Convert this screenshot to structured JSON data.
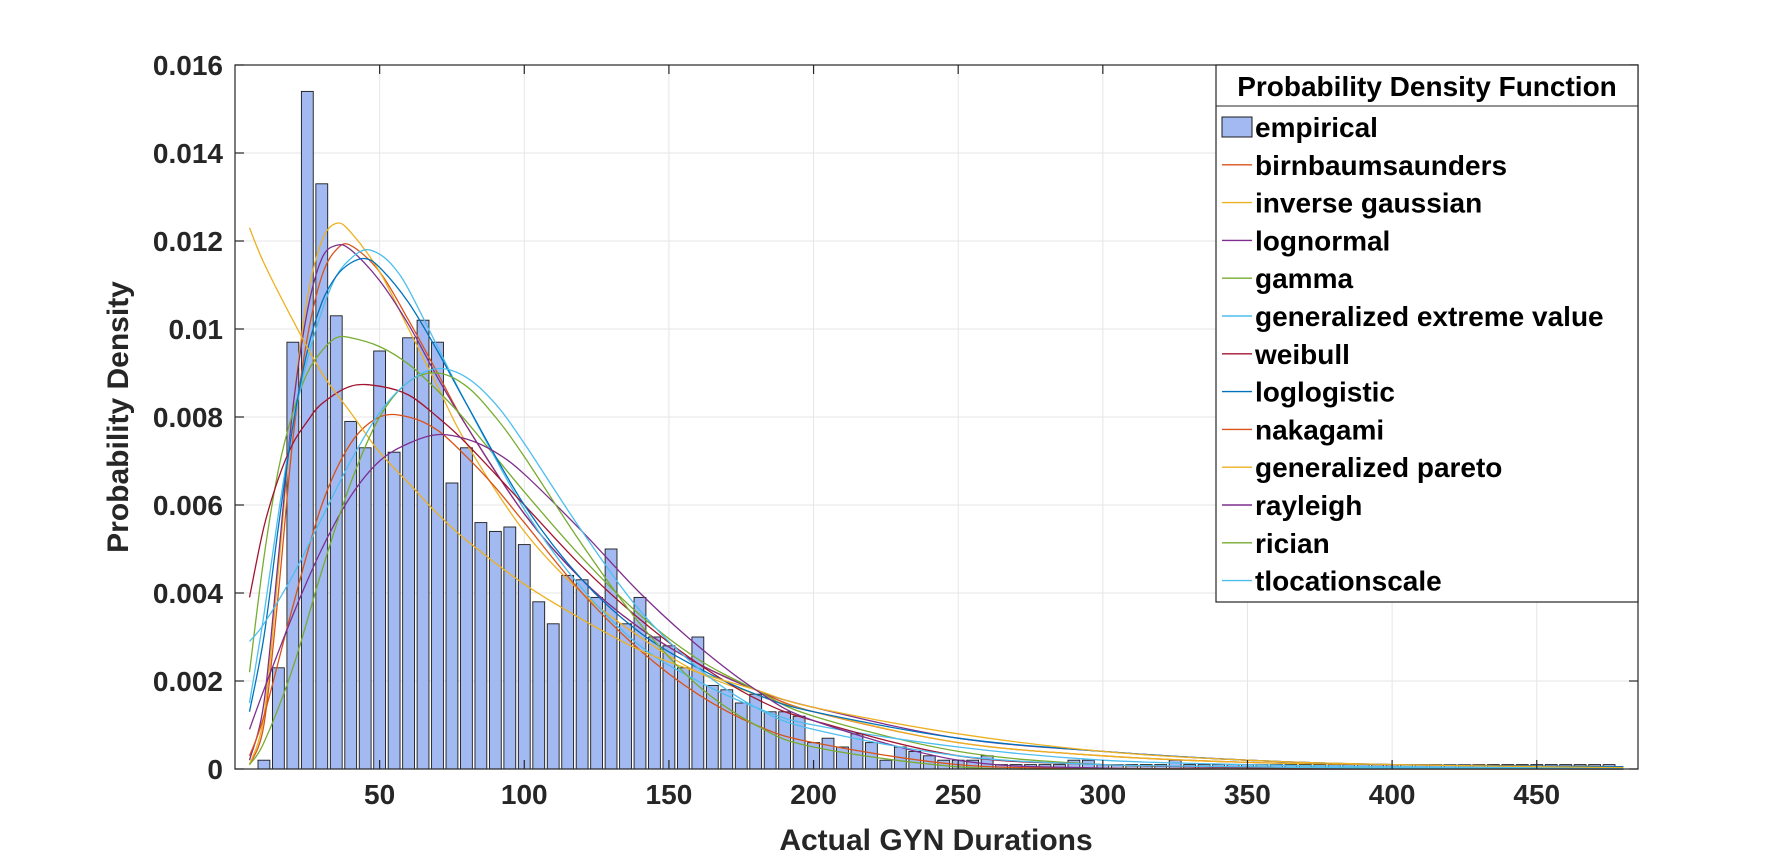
{
  "chart_data": {
    "type": "bar",
    "xlabel": "Actual GYN Durations",
    "ylabel": "Probability Density",
    "xlim": [
      0,
      485
    ],
    "ylim": [
      0,
      0.016
    ],
    "x_ticks": [
      50,
      100,
      150,
      200,
      250,
      300,
      350,
      400,
      450
    ],
    "x_tick_labels": [
      "50",
      "100",
      "150",
      "200",
      "250",
      "300",
      "350",
      "400",
      "450"
    ],
    "y_ticks": [
      0,
      0.002,
      0.004,
      0.006,
      0.008,
      0.01,
      0.012,
      0.014,
      0.016
    ],
    "y_tick_labels": [
      "0",
      "0.002",
      "0.004",
      "0.006",
      "0.008",
      "0.01",
      "0.012",
      "0.014",
      "0.016"
    ],
    "grid": true,
    "legend_title": "Probability Density Function",
    "legend_position": "top-right",
    "histogram": {
      "name": "empirical",
      "color": "#a3b9f2",
      "edge_color": "#1a1a1a",
      "bin_width": 5,
      "bin_centers": [
        10,
        15,
        20,
        25,
        30,
        35,
        40,
        45,
        50,
        55,
        60,
        65,
        70,
        75,
        80,
        85,
        90,
        95,
        100,
        105,
        110,
        115,
        120,
        125,
        130,
        135,
        140,
        145,
        150,
        155,
        160,
        165,
        170,
        175,
        180,
        185,
        190,
        195,
        200,
        205,
        210,
        215,
        220,
        225,
        230,
        235,
        240,
        245,
        250,
        255,
        260,
        265,
        270,
        275,
        280,
        285,
        290,
        295,
        300,
        305,
        310,
        315,
        320,
        325,
        330,
        335,
        340,
        345,
        350,
        355,
        360,
        365,
        370,
        375,
        380,
        385,
        390,
        395,
        400,
        405,
        410,
        415,
        420,
        425,
        430,
        435,
        440,
        445,
        450,
        455,
        460,
        465,
        470,
        475
      ],
      "values": [
        0.0002,
        0.0023,
        0.0097,
        0.0154,
        0.0133,
        0.0103,
        0.0079,
        0.0073,
        0.0095,
        0.0072,
        0.0098,
        0.0102,
        0.0097,
        0.0065,
        0.0073,
        0.0056,
        0.0054,
        0.0055,
        0.0051,
        0.0038,
        0.0033,
        0.0044,
        0.0043,
        0.0039,
        0.005,
        0.0033,
        0.0039,
        0.003,
        0.0028,
        0.0023,
        0.003,
        0.0019,
        0.0018,
        0.0015,
        0.0017,
        0.0013,
        0.0013,
        0.0012,
        0.0006,
        0.0007,
        0.0005,
        0.0008,
        0.0006,
        0.0002,
        0.0005,
        0.0004,
        0.0003,
        0.0002,
        0.0002,
        0.0002,
        0.0003,
        0.0001,
        0.0001,
        0.0001,
        0.0001,
        0.0001,
        0.0002,
        0.0002,
        0.0001,
        0.0001,
        0.0001,
        0.0001,
        0.0001,
        0.0002,
        0.0001,
        0.0001,
        0.0001,
        0.0001,
        0.0001,
        0.0001,
        0.0001,
        0.0001,
        0.0001,
        0.0001,
        0.0001,
        0.0001,
        0.0001,
        0.0001,
        0.0001,
        0.0001,
        0.0001,
        0.0001,
        0.0001,
        0.0001,
        0.0001,
        0.0001,
        0.0001,
        0.0001,
        0.0001,
        0.0001,
        0.0001,
        0.0001,
        0.0001,
        0.0001
      ]
    },
    "series": [
      {
        "name": "birnbaumsaunders",
        "color": "#d95319",
        "x": [
          5,
          10,
          15,
          20,
          25,
          30,
          35,
          40,
          50,
          60,
          70,
          80,
          100,
          120,
          140,
          160,
          180,
          200,
          250,
          300,
          350,
          400,
          480
        ],
        "y": [
          0.0001,
          0.001,
          0.004,
          0.0075,
          0.0098,
          0.0112,
          0.0118,
          0.0119,
          0.0113,
          0.0102,
          0.009,
          0.0078,
          0.0058,
          0.0043,
          0.0032,
          0.0024,
          0.0018,
          0.0013,
          0.0006,
          0.0003,
          0.00015,
          0.0001,
          5e-05
        ]
      },
      {
        "name": "inverse gaussian",
        "color": "#edb120",
        "x": [
          5,
          10,
          15,
          20,
          25,
          30,
          35,
          40,
          50,
          60,
          70,
          80,
          100,
          120,
          140,
          160,
          180,
          200,
          250,
          300,
          350,
          400,
          480
        ],
        "y": [
          0.0001,
          0.0012,
          0.0045,
          0.0082,
          0.0107,
          0.012,
          0.0124,
          0.0122,
          0.0113,
          0.01,
          0.0087,
          0.0074,
          0.0054,
          0.004,
          0.003,
          0.0022,
          0.0017,
          0.0013,
          0.0006,
          0.0003,
          0.00015,
          0.0001,
          5e-05
        ]
      },
      {
        "name": "lognormal",
        "color": "#7e2f8e",
        "x": [
          5,
          10,
          15,
          20,
          25,
          30,
          35,
          40,
          50,
          60,
          70,
          80,
          100,
          120,
          140,
          160,
          180,
          200,
          250,
          300,
          350,
          400,
          480
        ],
        "y": [
          0.0002,
          0.0015,
          0.0048,
          0.0082,
          0.0104,
          0.0116,
          0.0119,
          0.0118,
          0.0111,
          0.0101,
          0.0089,
          0.0078,
          0.0058,
          0.0043,
          0.0032,
          0.0024,
          0.0018,
          0.0014,
          0.0007,
          0.0004,
          0.0002,
          0.0001,
          5e-05
        ]
      },
      {
        "name": "gamma",
        "color": "#77ac30",
        "x": [
          5,
          10,
          15,
          20,
          25,
          30,
          35,
          40,
          50,
          60,
          70,
          80,
          100,
          120,
          140,
          160,
          180,
          200,
          250,
          300,
          350,
          400,
          480
        ],
        "y": [
          0.0022,
          0.0048,
          0.0068,
          0.0081,
          0.009,
          0.0095,
          0.0098,
          0.0098,
          0.0096,
          0.0092,
          0.0086,
          0.0079,
          0.0063,
          0.0048,
          0.0035,
          0.0025,
          0.0018,
          0.0012,
          0.0004,
          0.0001,
          5e-05,
          2e-05,
          0
        ]
      },
      {
        "name": "generalized extreme value",
        "color": "#4dbeee",
        "x": [
          5,
          10,
          15,
          20,
          25,
          30,
          35,
          40,
          45,
          50,
          55,
          60,
          70,
          80,
          100,
          120,
          140,
          160,
          180,
          200,
          250,
          300,
          350,
          400,
          480
        ],
        "y": [
          0.0015,
          0.0035,
          0.0058,
          0.0078,
          0.0093,
          0.0104,
          0.0112,
          0.0116,
          0.0118,
          0.0117,
          0.0114,
          0.0109,
          0.0096,
          0.0083,
          0.0059,
          0.0041,
          0.0028,
          0.002,
          0.0014,
          0.001,
          0.0005,
          0.0002,
          0.0001,
          5e-05,
          2e-05
        ]
      },
      {
        "name": "weibull",
        "color": "#a2142f",
        "x": [
          5,
          10,
          15,
          20,
          25,
          30,
          40,
          50,
          60,
          70,
          80,
          100,
          120,
          140,
          160,
          180,
          200,
          250,
          300,
          350,
          400,
          480
        ],
        "y": [
          0.0039,
          0.0055,
          0.0066,
          0.0074,
          0.0079,
          0.0083,
          0.0087,
          0.0087,
          0.0085,
          0.008,
          0.0074,
          0.006,
          0.0046,
          0.0034,
          0.0024,
          0.0016,
          0.0011,
          0.0003,
          0.0001,
          3e-05,
          1e-05,
          0
        ]
      },
      {
        "name": "loglogistic",
        "color": "#0072bd",
        "x": [
          5,
          10,
          15,
          20,
          25,
          30,
          35,
          40,
          45,
          50,
          60,
          70,
          80,
          100,
          120,
          140,
          160,
          180,
          200,
          250,
          300,
          350,
          400,
          480
        ],
        "y": [
          0.0013,
          0.003,
          0.0055,
          0.0078,
          0.0095,
          0.0106,
          0.0112,
          0.0115,
          0.0116,
          0.0114,
          0.0106,
          0.0095,
          0.0083,
          0.006,
          0.0043,
          0.0031,
          0.0023,
          0.0017,
          0.0013,
          0.0007,
          0.0004,
          0.0002,
          0.0001,
          5e-05
        ]
      },
      {
        "name": "nakagami",
        "color": "#d95319",
        "x": [
          5,
          10,
          20,
          30,
          40,
          50,
          60,
          70,
          80,
          90,
          100,
          120,
          140,
          160,
          180,
          200,
          250,
          300,
          350,
          400,
          480
        ],
        "y": [
          0.0003,
          0.0012,
          0.0037,
          0.006,
          0.0074,
          0.008,
          0.008,
          0.0077,
          0.0071,
          0.0064,
          0.0056,
          0.004,
          0.0027,
          0.0017,
          0.001,
          0.0006,
          0.0001,
          2e-05,
          0,
          0,
          0
        ]
      },
      {
        "name": "generalized pareto",
        "color": "#edb120",
        "x": [
          5,
          10,
          20,
          30,
          40,
          50,
          60,
          70,
          80,
          100,
          120,
          140,
          160,
          180,
          200,
          250,
          300,
          350,
          400,
          480
        ],
        "y": [
          0.0123,
          0.0115,
          0.0102,
          0.009,
          0.0081,
          0.0072,
          0.0065,
          0.0058,
          0.0052,
          0.0042,
          0.0034,
          0.0027,
          0.0022,
          0.0018,
          0.0014,
          0.0008,
          0.0004,
          0.0002,
          0.0001,
          3e-05
        ]
      },
      {
        "name": "rayleigh",
        "color": "#7e2f8e",
        "x": [
          5,
          10,
          20,
          30,
          40,
          50,
          60,
          70,
          80,
          90,
          100,
          120,
          140,
          160,
          180,
          200,
          250,
          300,
          350,
          400,
          480
        ],
        "y": [
          0.0009,
          0.0018,
          0.0035,
          0.005,
          0.0062,
          0.007,
          0.0074,
          0.0076,
          0.0075,
          0.0072,
          0.0067,
          0.0054,
          0.004,
          0.0028,
          0.0018,
          0.0011,
          0.0002,
          2e-05,
          0,
          0,
          0
        ]
      },
      {
        "name": "rician",
        "color": "#77ac30",
        "x": [
          5,
          10,
          20,
          30,
          40,
          50,
          60,
          70,
          80,
          90,
          100,
          120,
          140,
          160,
          180,
          200,
          250,
          300,
          350,
          400,
          480
        ],
        "y": [
          0.0001,
          0.0006,
          0.0023,
          0.0045,
          0.0065,
          0.008,
          0.0088,
          0.009,
          0.0087,
          0.008,
          0.0071,
          0.0051,
          0.0033,
          0.0019,
          0.001,
          0.0005,
          5e-05,
          0,
          0,
          0,
          0
        ]
      },
      {
        "name": "tlocationscale",
        "color": "#4dbeee",
        "x": [
          5,
          10,
          20,
          30,
          40,
          50,
          60,
          70,
          80,
          90,
          100,
          120,
          140,
          160,
          180,
          200,
          250,
          300,
          350,
          400,
          480
        ],
        "y": [
          0.0029,
          0.0033,
          0.0044,
          0.0057,
          0.007,
          0.0081,
          0.0088,
          0.0091,
          0.0089,
          0.0083,
          0.0074,
          0.0054,
          0.0036,
          0.0023,
          0.0014,
          0.0009,
          0.0003,
          0.0001,
          5e-05,
          2e-05,
          1e-05
        ]
      }
    ]
  }
}
